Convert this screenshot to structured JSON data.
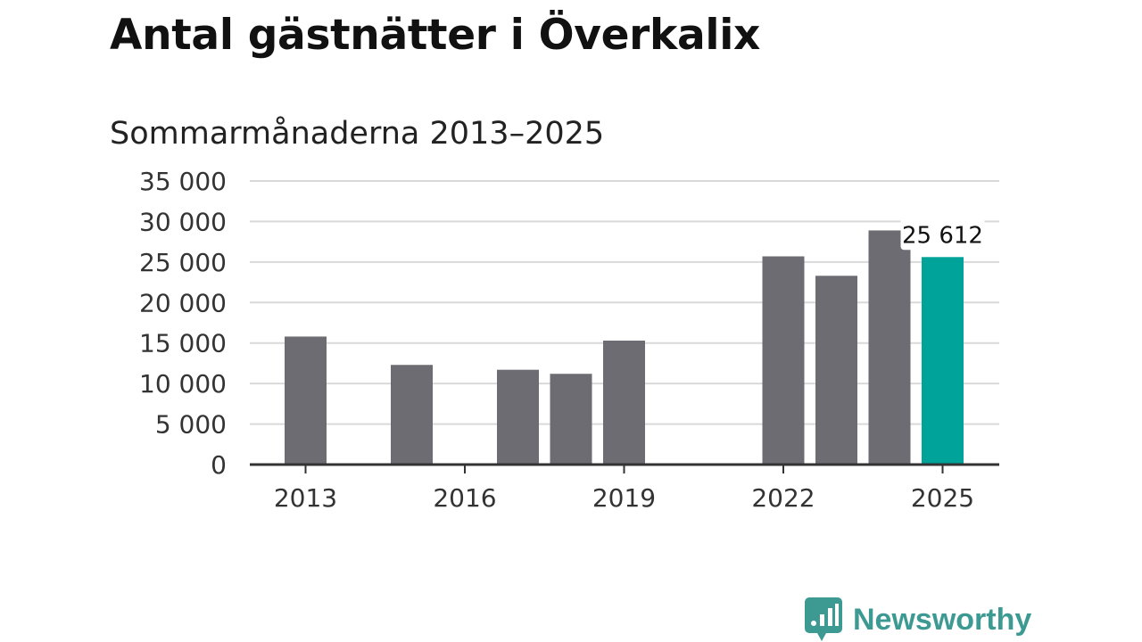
{
  "chart_data": {
    "type": "bar",
    "title": "Antal gästnätter i Överkalix",
    "subtitle": "Sommarmånaderna 2013–2025",
    "categories": [
      "2013",
      "2014",
      "2015",
      "2016",
      "2017",
      "2018",
      "2019",
      "2020",
      "2021",
      "2022",
      "2023",
      "2024",
      "2025"
    ],
    "values": [
      15800,
      null,
      12300,
      null,
      11700,
      11200,
      15300,
      null,
      null,
      25700,
      23300,
      28900,
      25612
    ],
    "x_tick_labels": [
      "2013",
      "2016",
      "2019",
      "2022",
      "2025"
    ],
    "y_ticks": [
      0,
      5000,
      10000,
      15000,
      20000,
      25000,
      30000,
      35000
    ],
    "y_tick_labels": [
      "0",
      "5 000",
      "10 000",
      "15 000",
      "20 000",
      "25 000",
      "30 000",
      "35 000"
    ],
    "ylim": [
      0,
      35000
    ],
    "xlabel": "",
    "ylabel": "",
    "grid": true,
    "highlight": {
      "category": "2025",
      "label": "25 612"
    },
    "colors": {
      "bar": "#6d6c72",
      "highlight": "#00a39a",
      "grid": "#d9d9d9",
      "axis": "#333333"
    }
  },
  "brand": {
    "name": "Newsworthy",
    "color": "#3d9a93"
  }
}
